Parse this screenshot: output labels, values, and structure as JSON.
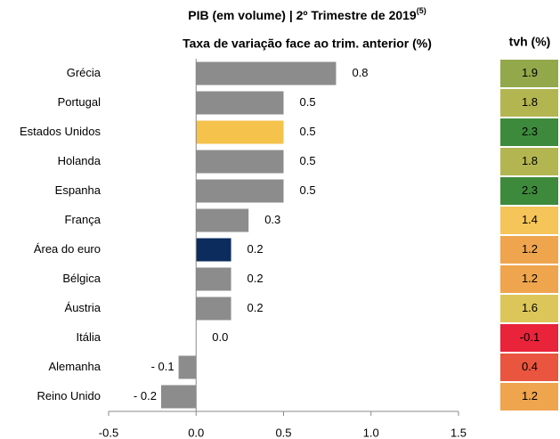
{
  "chart_data": {
    "type": "bar",
    "orientation": "horizontal",
    "title": "PIB (em volume) | 2º Trimestre de 2019",
    "title_note": "(5)",
    "subtitle": "Taxa de variação face ao trim. anterior (%)",
    "categories": [
      "Grécia",
      "Portugal",
      "Estados Unidos",
      "Holanda",
      "Espanha",
      "França",
      "Área do euro",
      "Bélgica",
      "Áustria",
      "Itália",
      "Alemanha",
      "Reino Unido"
    ],
    "values": [
      0.8,
      0.5,
      0.5,
      0.5,
      0.5,
      0.3,
      0.2,
      0.2,
      0.2,
      0.0,
      -0.1,
      -0.2
    ],
    "value_labels": [
      "0.8",
      "0.5",
      "0.5",
      "0.5",
      "0.5",
      "0.3",
      "0.2",
      "0.2",
      "0.2",
      "0.0",
      "- 0.1",
      "- 0.2"
    ],
    "colors": [
      "#8c8c8c",
      "#8c8c8c",
      "#f5c24c",
      "#8c8c8c",
      "#8c8c8c",
      "#8c8c8c",
      "#0d2c5e",
      "#8c8c8c",
      "#8c8c8c",
      "#8c8c8c",
      "#8c8c8c",
      "#8c8c8c"
    ],
    "xlim": [
      -0.5,
      1.5
    ],
    "xticks": [
      -0.5,
      {
        "value": 0.0,
        "label": "0.0"
      },
      0.5,
      {
        "value": 1.0,
        "label": "1.0"
      },
      1.5
    ],
    "table": {
      "title": "tvh (%)",
      "values": [
        1.9,
        1.8,
        2.3,
        1.8,
        2.3,
        1.4,
        1.2,
        1.2,
        1.6,
        -0.1,
        0.4,
        1.2
      ],
      "colors": [
        "#93a84b",
        "#b3b650",
        "#3e8a3c",
        "#b3b650",
        "#3e8a3c",
        "#f5c55a",
        "#eea54e",
        "#eea54e",
        "#dcc65a",
        "#e8233a",
        "#e9553f",
        "#eea54e"
      ]
    }
  }
}
